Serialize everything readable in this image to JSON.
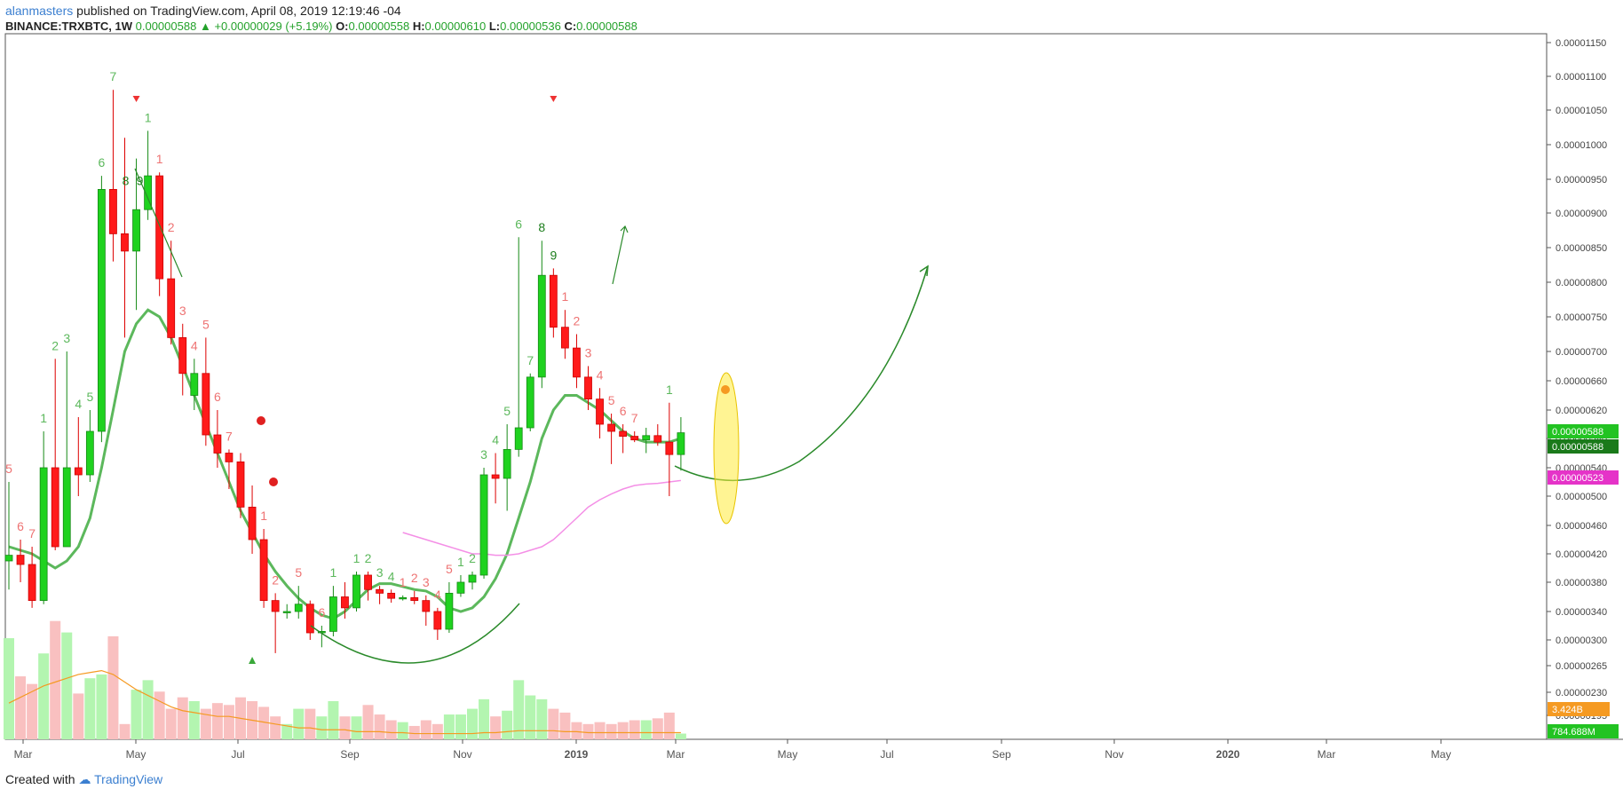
{
  "header": {
    "author": "alanmasters",
    "published": "published on TradingView.com, April 08, 2019 12:19:46 -04",
    "symbol": "BINANCE:TRXBTC, 1W",
    "last": "0.00000588",
    "change": "+0.00000029 (+5.19%)",
    "o_label": "O:",
    "o_value": "0.00000558",
    "h_label": "H:",
    "h_value": "0.00000610",
    "l_label": "L:",
    "l_value": "0.00000536",
    "c_label": "C:",
    "c_value": "0.00000588"
  },
  "footer": {
    "created_with": "Created with",
    "brand": "TradingView"
  },
  "colors": {
    "up": "#1fd21f",
    "down": "#ff1a1a",
    "ma_green": "#5cb85c",
    "ma_pink": "#f48fe6",
    "vol_ma": "#f59a22",
    "vol_up": "#b3f5b0",
    "vol_down": "#f9c0c0"
  },
  "chart_data": {
    "type": "candlestick",
    "symbol": "BINANCE:TRXBTC",
    "timeframe": "1W",
    "price_ticks": [
      "0.00001150",
      "0.00001100",
      "0.00001050",
      "0.00001000",
      "0.00000950",
      "0.00000900",
      "0.00000850",
      "0.00000800",
      "0.00000750",
      "0.00000700",
      "0.00000660",
      "0.00000620",
      "0.00000580",
      "0.00000540",
      "0.00000500",
      "0.00000460",
      "0.00000420",
      "0.00000380",
      "0.00000340",
      "0.00000300",
      "0.00000265",
      "0.00000230",
      "0.00000195"
    ],
    "price_scale": "log",
    "time_ticks": [
      "Mar",
      "May",
      "Jul",
      "Sep",
      "Nov",
      "2019",
      "Mar",
      "May",
      "Jul",
      "Sep",
      "Nov",
      "2020",
      "Mar",
      "May"
    ],
    "price_badges": [
      {
        "text": "0.00000588",
        "color": "#22c322"
      },
      {
        "text": "0.00000588",
        "color": "#1a7a1a"
      },
      {
        "text": "0.00000523",
        "color": "#e533c8"
      },
      {
        "text": "3.424B",
        "color": "#f59a22"
      },
      {
        "text": "784.688M",
        "color": "#22c322"
      }
    ],
    "candles": [
      {
        "o": 410,
        "h": 520,
        "l": 370,
        "c": 418
      },
      {
        "o": 418,
        "h": 440,
        "l": 380,
        "c": 405
      },
      {
        "o": 405,
        "h": 430,
        "l": 345,
        "c": 355
      },
      {
        "o": 355,
        "h": 590,
        "l": 350,
        "c": 540
      },
      {
        "o": 540,
        "h": 690,
        "l": 425,
        "c": 430
      },
      {
        "o": 430,
        "h": 700,
        "l": 430,
        "c": 540
      },
      {
        "o": 540,
        "h": 610,
        "l": 500,
        "c": 530
      },
      {
        "o": 530,
        "h": 620,
        "l": 520,
        "c": 590
      },
      {
        "o": 590,
        "h": 955,
        "l": 575,
        "c": 935
      },
      {
        "o": 935,
        "h": 1080,
        "l": 830,
        "c": 870
      },
      {
        "o": 870,
        "h": 1010,
        "l": 720,
        "c": 845
      },
      {
        "o": 845,
        "h": 980,
        "l": 760,
        "c": 905
      },
      {
        "o": 905,
        "h": 1020,
        "l": 890,
        "c": 955
      },
      {
        "o": 955,
        "h": 960,
        "l": 780,
        "c": 805
      },
      {
        "o": 805,
        "h": 860,
        "l": 710,
        "c": 720
      },
      {
        "o": 720,
        "h": 740,
        "l": 640,
        "c": 670
      },
      {
        "o": 640,
        "h": 690,
        "l": 620,
        "c": 670
      },
      {
        "o": 670,
        "h": 720,
        "l": 570,
        "c": 585
      },
      {
        "o": 585,
        "h": 620,
        "l": 540,
        "c": 560
      },
      {
        "o": 560,
        "h": 565,
        "l": 510,
        "c": 548
      },
      {
        "o": 548,
        "h": 560,
        "l": 470,
        "c": 485
      },
      {
        "o": 485,
        "h": 515,
        "l": 420,
        "c": 440
      },
      {
        "o": 440,
        "h": 455,
        "l": 345,
        "c": 355
      },
      {
        "o": 355,
        "h": 365,
        "l": 282,
        "c": 340
      },
      {
        "o": 340,
        "h": 350,
        "l": 330,
        "c": 340
      },
      {
        "o": 340,
        "h": 375,
        "l": 330,
        "c": 350
      },
      {
        "o": 350,
        "h": 355,
        "l": 300,
        "c": 310
      },
      {
        "o": 310,
        "h": 320,
        "l": 290,
        "c": 312
      },
      {
        "o": 312,
        "h": 375,
        "l": 305,
        "c": 360
      },
      {
        "o": 360,
        "h": 380,
        "l": 330,
        "c": 345
      },
      {
        "o": 345,
        "h": 395,
        "l": 340,
        "c": 390
      },
      {
        "o": 390,
        "h": 395,
        "l": 355,
        "c": 370
      },
      {
        "o": 370,
        "h": 375,
        "l": 350,
        "c": 365
      },
      {
        "o": 365,
        "h": 370,
        "l": 352,
        "c": 358
      },
      {
        "o": 358,
        "h": 362,
        "l": 355,
        "c": 359
      },
      {
        "o": 359,
        "h": 368,
        "l": 350,
        "c": 355
      },
      {
        "o": 355,
        "h": 362,
        "l": 320,
        "c": 340
      },
      {
        "o": 340,
        "h": 345,
        "l": 300,
        "c": 315
      },
      {
        "o": 315,
        "h": 380,
        "l": 310,
        "c": 365
      },
      {
        "o": 365,
        "h": 390,
        "l": 360,
        "c": 380
      },
      {
        "o": 380,
        "h": 395,
        "l": 370,
        "c": 390
      },
      {
        "o": 390,
        "h": 540,
        "l": 385,
        "c": 530
      },
      {
        "o": 530,
        "h": 560,
        "l": 490,
        "c": 525
      },
      {
        "o": 525,
        "h": 600,
        "l": 480,
        "c": 565
      },
      {
        "o": 565,
        "h": 865,
        "l": 555,
        "c": 595
      },
      {
        "o": 595,
        "h": 670,
        "l": 590,
        "c": 665
      },
      {
        "o": 665,
        "h": 860,
        "l": 650,
        "c": 810
      },
      {
        "o": 810,
        "h": 820,
        "l": 720,
        "c": 735
      },
      {
        "o": 735,
        "h": 760,
        "l": 690,
        "c": 705
      },
      {
        "o": 705,
        "h": 725,
        "l": 650,
        "c": 665
      },
      {
        "o": 665,
        "h": 680,
        "l": 620,
        "c": 635
      },
      {
        "o": 635,
        "h": 650,
        "l": 580,
        "c": 600
      },
      {
        "o": 600,
        "h": 615,
        "l": 545,
        "c": 590
      },
      {
        "o": 590,
        "h": 600,
        "l": 560,
        "c": 583
      },
      {
        "o": 583,
        "h": 590,
        "l": 575,
        "c": 578
      },
      {
        "o": 578,
        "h": 595,
        "l": 560,
        "c": 584
      },
      {
        "o": 584,
        "h": 600,
        "l": 570,
        "c": 575
      },
      {
        "o": 575,
        "h": 630,
        "l": 500,
        "c": 558
      },
      {
        "o": 558,
        "h": 610,
        "l": 536,
        "c": 588
      }
    ],
    "volumes_rel": [
      0.53,
      0.33,
      0.29,
      0.45,
      0.62,
      0.56,
      0.24,
      0.32,
      0.34,
      0.54,
      0.08,
      0.26,
      0.31,
      0.25,
      0.16,
      0.22,
      0.2,
      0.16,
      0.19,
      0.18,
      0.22,
      0.2,
      0.17,
      0.12,
      0.08,
      0.16,
      0.16,
      0.12,
      0.2,
      0.12,
      0.12,
      0.18,
      0.13,
      0.1,
      0.09,
      0.07,
      0.1,
      0.08,
      0.13,
      0.13,
      0.16,
      0.21,
      0.12,
      0.15,
      0.31,
      0.23,
      0.21,
      0.16,
      0.14,
      0.09,
      0.08,
      0.09,
      0.08,
      0.09,
      0.1,
      0.1,
      0.11,
      0.14,
      0.03
    ],
    "volume_ma_rel": [
      0.19,
      0.22,
      0.25,
      0.28,
      0.3,
      0.32,
      0.34,
      0.35,
      0.36,
      0.34,
      0.3,
      0.26,
      0.23,
      0.2,
      0.17,
      0.15,
      0.14,
      0.13,
      0.12,
      0.12,
      0.11,
      0.1,
      0.09,
      0.08,
      0.07,
      0.06,
      0.06,
      0.05,
      0.05,
      0.05,
      0.04,
      0.04,
      0.04,
      0.035,
      0.035,
      0.03,
      0.03,
      0.03,
      0.03,
      0.03,
      0.03,
      0.035,
      0.035,
      0.04,
      0.045,
      0.045,
      0.045,
      0.045,
      0.04,
      0.04,
      0.035,
      0.035,
      0.035,
      0.035,
      0.035,
      0.035,
      0.035,
      0.035,
      0.035
    ],
    "ma_fast": [
      430,
      425,
      420,
      410,
      400,
      410,
      430,
      470,
      540,
      620,
      700,
      740,
      760,
      750,
      720,
      680,
      640,
      600,
      560,
      520,
      480,
      450,
      420,
      395,
      375,
      358,
      345,
      335,
      330,
      340,
      355,
      370,
      378,
      378,
      374,
      370,
      368,
      360,
      345,
      340,
      345,
      360,
      385,
      420,
      470,
      520,
      580,
      620,
      640,
      640,
      630,
      620,
      605,
      590,
      580,
      575,
      575,
      575,
      580
    ],
    "ma_slow_start_index": 34,
    "ma_slow": [
      450,
      445,
      440,
      435,
      430,
      425,
      420,
      420,
      418,
      418,
      420,
      425,
      430,
      440,
      455,
      470,
      485,
      495,
      503,
      510,
      515,
      517,
      518,
      520,
      522
    ],
    "sequential_labels": [
      {
        "i": 0,
        "t": "5",
        "pos": "above"
      },
      {
        "i": 1,
        "t": "6",
        "pos": "above"
      },
      {
        "i": 2,
        "t": "7",
        "pos": "above"
      },
      {
        "i": 3,
        "t": "1",
        "pos": "above",
        "up": true
      },
      {
        "i": 4,
        "t": "2",
        "pos": "above",
        "up": true
      },
      {
        "i": 5,
        "t": "3",
        "pos": "above",
        "up": true
      },
      {
        "i": 6,
        "t": "4",
        "pos": "above",
        "up": true
      },
      {
        "i": 7,
        "t": "5",
        "pos": "above",
        "up": true
      },
      {
        "i": 8,
        "t": "6",
        "pos": "above",
        "up": true
      },
      {
        "i": 9,
        "t": "7",
        "pos": "above",
        "up": true
      },
      {
        "i": 11,
        "t": "8",
        "pos": "left",
        "up": true
      },
      {
        "i": 11,
        "t": "9",
        "pos": "right",
        "up": true
      },
      {
        "i": 12,
        "t": "1",
        "pos": "above",
        "up": true
      },
      {
        "i": 13,
        "t": "1",
        "pos": "above"
      },
      {
        "i": 14,
        "t": "2",
        "pos": "above"
      },
      {
        "i": 15,
        "t": "3",
        "pos": "above"
      },
      {
        "i": 16,
        "t": "4",
        "pos": "above"
      },
      {
        "i": 17,
        "t": "5",
        "pos": "above"
      },
      {
        "i": 18,
        "t": "6",
        "pos": "above"
      },
      {
        "i": 19,
        "t": "7",
        "pos": "above"
      },
      {
        "i": 22,
        "t": "1",
        "pos": "above"
      },
      {
        "i": 23,
        "t": "2",
        "pos": "above"
      },
      {
        "i": 25,
        "t": "5",
        "pos": "above"
      },
      {
        "i": 27,
        "t": "6",
        "pos": "above"
      },
      {
        "i": 28,
        "t": "1",
        "pos": "above",
        "up": true
      },
      {
        "i": 30,
        "t": "1",
        "pos": "above",
        "up": true
      },
      {
        "i": 31,
        "t": "2",
        "pos": "above",
        "up": true
      },
      {
        "i": 32,
        "t": "3",
        "pos": "above",
        "up": true
      },
      {
        "i": 33,
        "t": "4",
        "pos": "above",
        "up": true
      },
      {
        "i": 34,
        "t": "1",
        "pos": "above"
      },
      {
        "i": 35,
        "t": "2",
        "pos": "above"
      },
      {
        "i": 36,
        "t": "3",
        "pos": "above"
      },
      {
        "i": 37,
        "t": "4",
        "pos": "above"
      },
      {
        "i": 38,
        "t": "5",
        "pos": "above"
      },
      {
        "i": 39,
        "t": "1",
        "pos": "above",
        "up": true
      },
      {
        "i": 40,
        "t": "2",
        "pos": "above",
        "up": true
      },
      {
        "i": 41,
        "t": "3",
        "pos": "above",
        "up": true
      },
      {
        "i": 42,
        "t": "4",
        "pos": "above",
        "up": true
      },
      {
        "i": 43,
        "t": "5",
        "pos": "above",
        "up": true
      },
      {
        "i": 44,
        "t": "6",
        "pos": "above",
        "up": true
      },
      {
        "i": 45,
        "t": "7",
        "pos": "above",
        "up": true
      },
      {
        "i": 46,
        "t": "8",
        "pos": "above",
        "up": true
      },
      {
        "i": 47,
        "t": "9",
        "pos": "above",
        "up": true
      },
      {
        "i": 48,
        "t": "1",
        "pos": "above"
      },
      {
        "i": 49,
        "t": "2",
        "pos": "above"
      },
      {
        "i": 50,
        "t": "3",
        "pos": "above"
      },
      {
        "i": 51,
        "t": "4",
        "pos": "above"
      },
      {
        "i": 52,
        "t": "5",
        "pos": "above"
      },
      {
        "i": 53,
        "t": "6",
        "pos": "above"
      },
      {
        "i": 54,
        "t": "7",
        "pos": "above"
      },
      {
        "i": 57,
        "t": "1",
        "pos": "above",
        "up": true
      }
    ],
    "sell_arrows": [
      {
        "i": 11
      },
      {
        "i": 47
      }
    ],
    "buy_arrow": {
      "i": 21
    },
    "projection_note": "green curved arrow projecting upward"
  }
}
